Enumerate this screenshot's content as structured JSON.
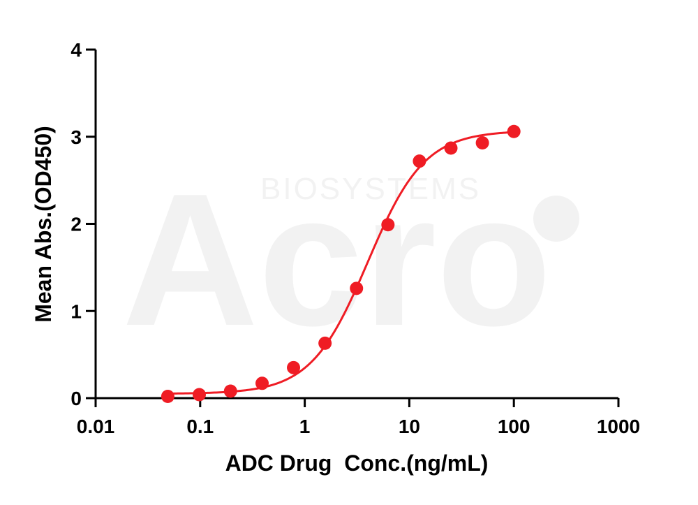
{
  "watermark": {
    "logo_text": "Acro",
    "brand_text": "BIOSYSTEMS"
  },
  "colors": {
    "series": "#ef1c24",
    "axis": "#000000",
    "watermark": "#f2f2f2"
  },
  "chart_data": {
    "type": "scatter",
    "title": "",
    "xlabel": "ADC Drug  Conc.(ng/mL)",
    "ylabel": "Mean Abs.(OD450)",
    "xscale": "log",
    "xlim": [
      0.01,
      1000
    ],
    "ylim": [
      0,
      4
    ],
    "x_ticks": [
      0.01,
      0.1,
      1,
      10,
      100,
      1000
    ],
    "x_tick_labels": [
      "0.01",
      "0.1",
      "1",
      "10",
      "100",
      "1000"
    ],
    "y_ticks": [
      0,
      1,
      2,
      3,
      4
    ],
    "y_tick_labels": [
      "0",
      "1",
      "2",
      "3",
      "4"
    ],
    "grid": false,
    "legend": "none",
    "series": [
      {
        "x": [
          0.049,
          0.098,
          0.195,
          0.391,
          0.781,
          1.563,
          3.125,
          6.25,
          12.5,
          25,
          50,
          100
        ],
        "y": [
          0.02,
          0.04,
          0.08,
          0.17,
          0.35,
          0.63,
          1.26,
          1.99,
          2.72,
          2.87,
          2.93,
          3.06
        ],
        "fit": {
          "type": "4PL",
          "bottom": 0.05,
          "top": 3.07,
          "ec50": 4.0,
          "hill": 1.6
        }
      }
    ]
  }
}
